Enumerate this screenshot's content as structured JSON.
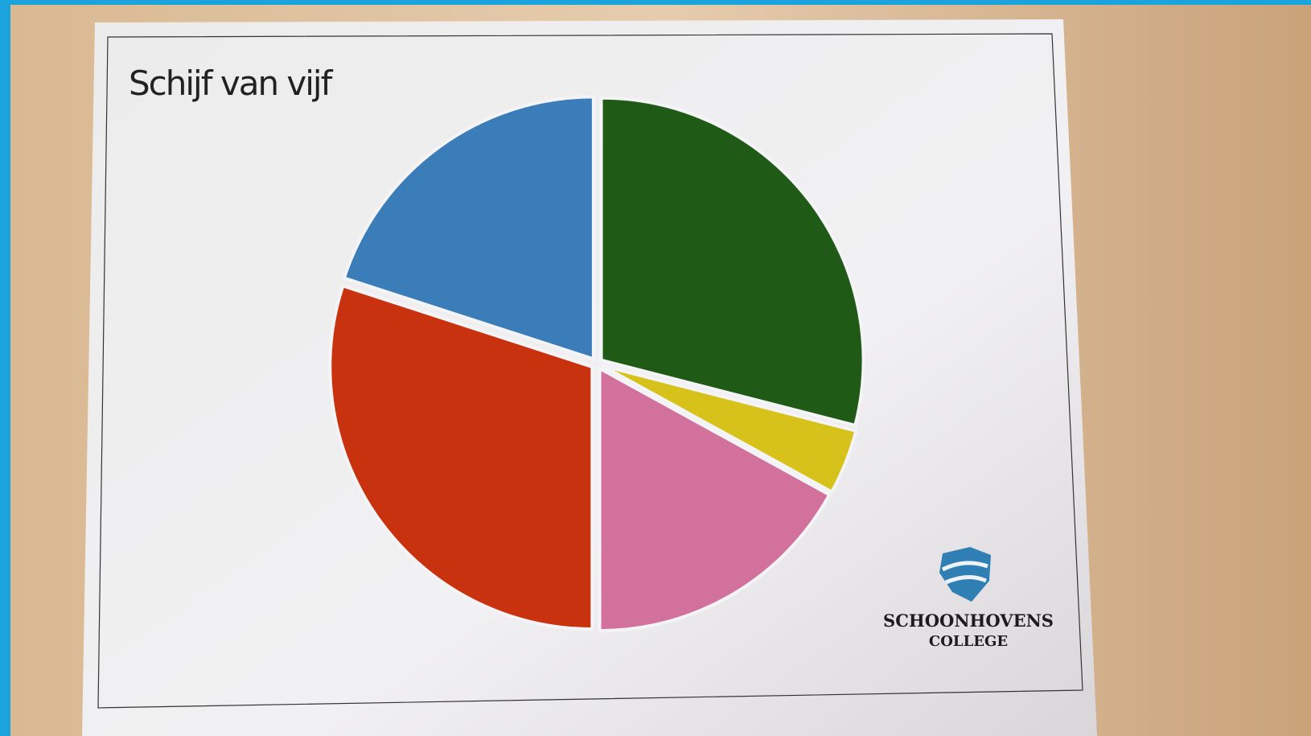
{
  "chart_data": {
    "type": "pie",
    "title": "Schijf van vijf",
    "values": [
      29,
      4,
      17,
      30,
      20
    ],
    "colors": [
      "#1f5a17",
      "#d6c21a",
      "#d2719c",
      "#c9320f",
      "#3a7db9"
    ],
    "start_angle": 0,
    "direction": "clockwise"
  },
  "logo": {
    "line1": "SCHOONHOVENS",
    "line2": "COLLEGE"
  }
}
